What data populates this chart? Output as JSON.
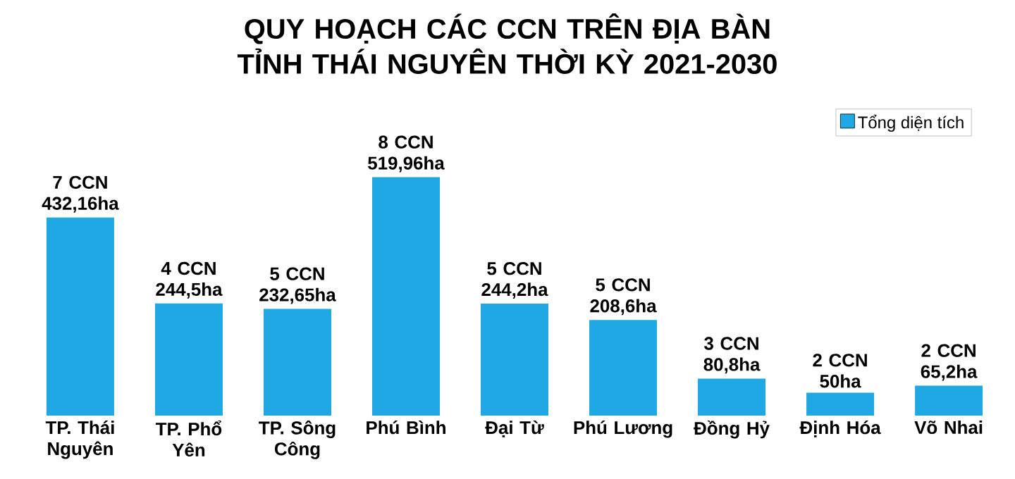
{
  "chart_data": {
    "type": "bar",
    "title": "QUY HOẠCH CÁC CCN TRÊN ĐỊA BÀN TỈNH THÁI NGUYÊN THỜI KỲ 2021-2030",
    "categories": [
      "TP. Thái Nguyên",
      "TP. Phổ Yên",
      "TP. Sông Công",
      "Phú Bình",
      "Đại Từ",
      "Phú Lương",
      "Đồng Hỷ",
      "Định Hóa",
      "Võ Nhai"
    ],
    "series": [
      {
        "name": "Tổng diện tích",
        "color": "#1fa8e4",
        "values": [
          432.16,
          244.5,
          232.65,
          519.96,
          244.2,
          208.6,
          80.8,
          50,
          65.2
        ],
        "value_labels": [
          "7 CCN 432,16ha",
          "4 CCN 244,5ha",
          "5 CCN 232,65ha",
          "8 CCN 519,96ha",
          "5 CCN 244,2ha",
          "5 CCN 208,6ha",
          "3 CCN 80,8ha",
          "2 CCN 50ha",
          "2 CCN 65,2ha"
        ]
      }
    ],
    "legend": "top right"
  }
}
